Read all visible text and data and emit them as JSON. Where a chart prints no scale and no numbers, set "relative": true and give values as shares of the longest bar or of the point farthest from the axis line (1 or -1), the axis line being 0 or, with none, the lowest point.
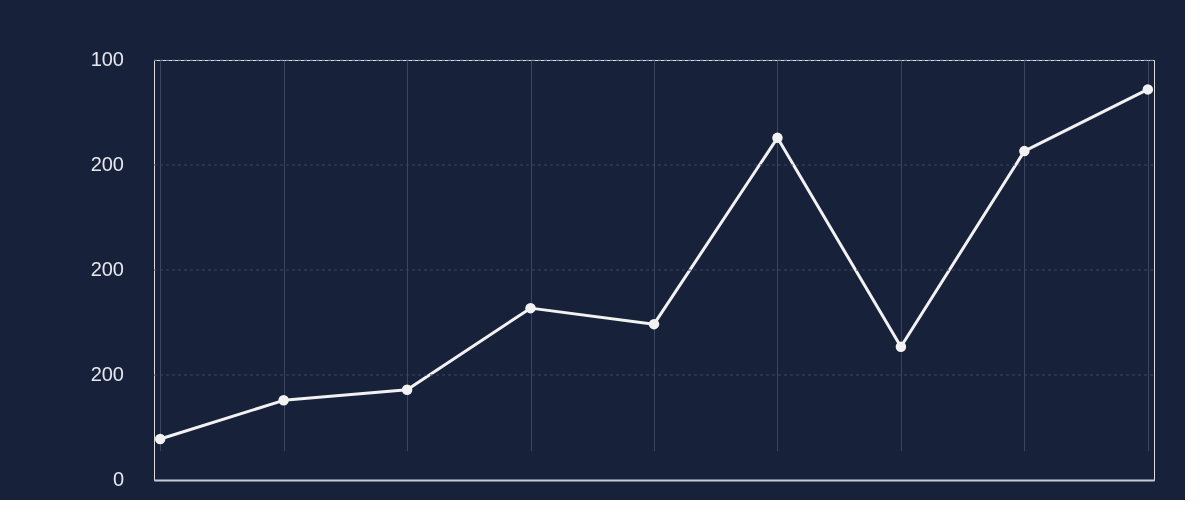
{
  "chart_data": {
    "type": "line",
    "relative": true,
    "categories": [
      null,
      null,
      null,
      null,
      null,
      null,
      null,
      null,
      null
    ],
    "series": [
      {
        "color": "#f2f2f2",
        "values": [
          0.105,
          0.204,
          0.231,
          0.44,
          0.399,
          0.876,
          0.341,
          0.842,
          1.0
        ]
      }
    ],
    "annotations": [
      "100",
      "200",
      "200",
      "200",
      "0"
    ],
    "grid": true,
    "marker": "circle",
    "line_style": "solid"
  }
}
